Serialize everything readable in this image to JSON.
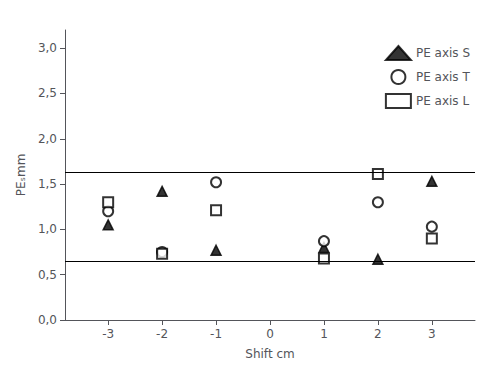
{
  "chart_data": {
    "type": "scatter",
    "xlabel": "Shift cm",
    "ylabel": "PEₛmm",
    "x": [
      -3,
      -2,
      -1,
      1,
      2,
      3
    ],
    "series": [
      {
        "name": "PE axis S",
        "color": "black",
        "marker": "triangle",
        "values": [
          1.05,
          1.42,
          0.77,
          0.8,
          0.67,
          1.53
        ]
      },
      {
        "name": "PE axis T",
        "color": "black",
        "marker": "open circle",
        "values": [
          1.2,
          0.75,
          1.52,
          0.87,
          1.3,
          1.03
        ]
      },
      {
        "name": "PE axis L",
        "color": "black",
        "marker": "open square",
        "values": [
          1.3,
          0.73,
          1.21,
          0.68,
          1.61,
          0.9
        ]
      }
    ],
    "hlines": [
      1.63,
      0.65
    ],
    "xlim": [
      -3.8,
      3.8
    ],
    "ylim": [
      0.0,
      3.2
    ],
    "xticks": [
      -3,
      -2,
      -1,
      0,
      1,
      2,
      3
    ],
    "yticks": [
      {
        "value": 0.0,
        "label": "0,0"
      },
      {
        "value": 0.5,
        "label": "0,5"
      },
      {
        "value": 1.0,
        "label": "1,0"
      },
      {
        "value": 1.5,
        "label": "1,5"
      },
      {
        "value": 2.0,
        "label": "2,0"
      },
      {
        "value": 2.5,
        "label": "2,5"
      },
      {
        "value": 3.0,
        "label": "3,0"
      }
    ],
    "grid": false,
    "legend": "upper right"
  }
}
